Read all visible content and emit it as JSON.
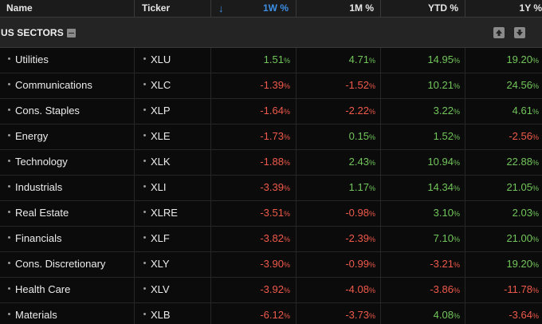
{
  "header": {
    "name_label": "Name",
    "ticker_label": "Ticker",
    "col_1w": "1W %",
    "col_1m": "1M %",
    "col_ytd": "YTD %",
    "col_1y": "1Y %",
    "sort_icon": "arrow-down-icon"
  },
  "group": {
    "title": "US SECTORS",
    "collapse_icon": "minus-icon",
    "up_icon": "arrow-up-icon",
    "down_icon": "arrow-down-icon"
  },
  "colors": {
    "positive": "#72c55a",
    "negative": "#ef5a4a",
    "accent": "#3d8fe6"
  },
  "rows": [
    {
      "name": "Utilities",
      "ticker": "XLU",
      "w1": "1.51",
      "m1": "4.71",
      "ytd": "14.95",
      "y1": "19.20"
    },
    {
      "name": "Communications",
      "ticker": "XLC",
      "w1": "-1.39",
      "m1": "-1.52",
      "ytd": "10.21",
      "y1": "24.56"
    },
    {
      "name": "Cons. Staples",
      "ticker": "XLP",
      "w1": "-1.64",
      "m1": "-2.22",
      "ytd": "3.22",
      "y1": "4.61"
    },
    {
      "name": "Energy",
      "ticker": "XLE",
      "w1": "-1.73",
      "m1": "0.15",
      "ytd": "1.52",
      "y1": "-2.56"
    },
    {
      "name": "Technology",
      "ticker": "XLK",
      "w1": "-1.88",
      "m1": "2.43",
      "ytd": "10.94",
      "y1": "22.88"
    },
    {
      "name": "Industrials",
      "ticker": "XLI",
      "w1": "-3.39",
      "m1": "1.17",
      "ytd": "14.34",
      "y1": "21.05"
    },
    {
      "name": "Real Estate",
      "ticker": "XLRE",
      "w1": "-3.51",
      "m1": "-0.98",
      "ytd": "3.10",
      "y1": "2.03"
    },
    {
      "name": "Financials",
      "ticker": "XLF",
      "w1": "-3.82",
      "m1": "-2.39",
      "ytd": "7.10",
      "y1": "21.00"
    },
    {
      "name": "Cons. Discretionary",
      "ticker": "XLY",
      "w1": "-3.90",
      "m1": "-0.99",
      "ytd": "-3.21",
      "y1": "19.20"
    },
    {
      "name": "Health Care",
      "ticker": "XLV",
      "w1": "-3.92",
      "m1": "-4.08",
      "ytd": "-3.86",
      "y1": "-11.78"
    },
    {
      "name": "Materials",
      "ticker": "XLB",
      "w1": "-6.12",
      "m1": "-3.73",
      "ytd": "4.08",
      "y1": "-3.64"
    }
  ]
}
